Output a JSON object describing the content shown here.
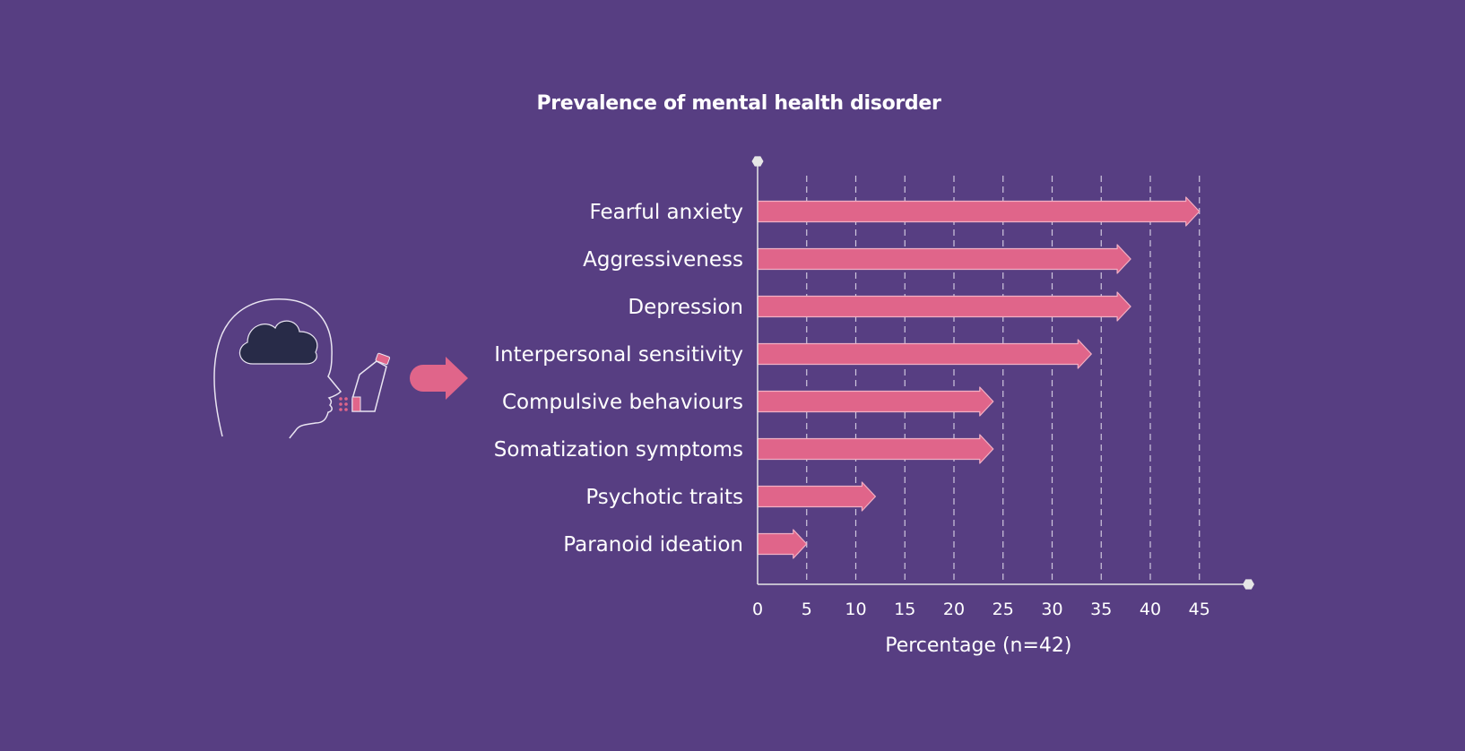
{
  "colors": {
    "background": "#573e82",
    "bar": "#e0658a",
    "bar_outline": "#f3b0c4",
    "axis": "#e6e6e6",
    "grid": "#cfc7de",
    "text": "#ffffff",
    "cloud": "#282b48"
  },
  "illustration": {
    "icons": [
      "head-outline-icon",
      "cloud-icon",
      "inhaler-icon",
      "arrow-right-icon"
    ]
  },
  "chart_data": {
    "type": "bar",
    "orientation": "horizontal",
    "title": "Prevalence of mental health disorder",
    "xlabel": "Percentage (n=42)",
    "ylabel": "",
    "categories": [
      "Fearful anxiety",
      "Aggressiveness",
      "Depression",
      "Interpersonal sensitivity",
      "Compulsive behaviours",
      "Somatization symptoms",
      "Psychotic traits",
      "Paranoid ideation"
    ],
    "values": [
      45,
      38,
      38,
      34,
      24,
      24,
      12,
      5
    ],
    "xlim": [
      0,
      50
    ],
    "xticks": [
      "0",
      "5",
      "10",
      "15",
      "20",
      "25",
      "30",
      "35",
      "40",
      "45"
    ],
    "grid": "vertical dashed",
    "legend": "none"
  }
}
